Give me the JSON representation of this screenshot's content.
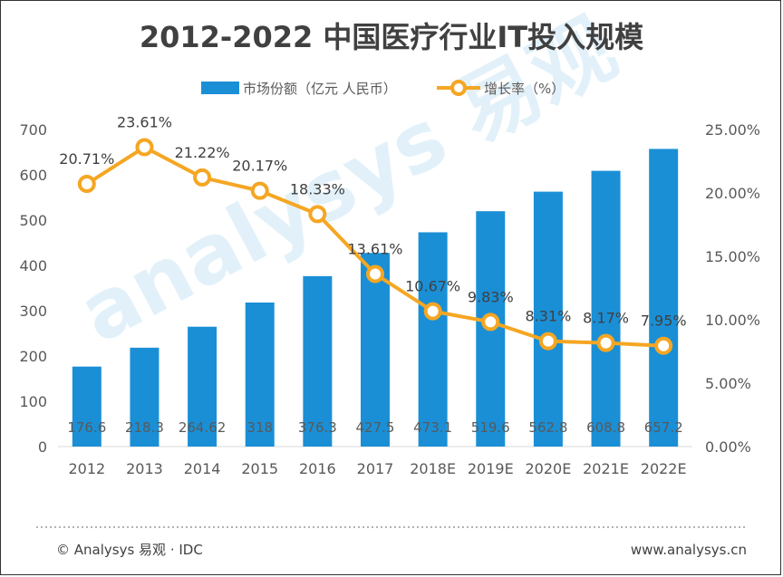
{
  "chart_data": {
    "type": "bar",
    "title": "2012-2022 中国医疗行业IT投入规模",
    "categories": [
      "2012",
      "2013",
      "2014",
      "2015",
      "2016",
      "2017",
      "2018E",
      "2019E",
      "2020E",
      "2021E",
      "2022E"
    ],
    "series": [
      {
        "name": "市场份额（亿元 人民币）",
        "type": "bar",
        "axis": "left",
        "color": "#1a8fd6",
        "values": [
          176.6,
          218.3,
          264.62,
          318,
          376.3,
          427.5,
          473.1,
          519.6,
          562.8,
          608.8,
          657.2
        ],
        "labels": [
          "176.6",
          "218.3",
          "264.62",
          "318",
          "376.3",
          "427.5",
          "473.1",
          "519.6",
          "562.8",
          "608.8",
          "657.2"
        ]
      },
      {
        "name": "增长率（%）",
        "type": "line",
        "axis": "right",
        "color": "#f5a623",
        "values": [
          20.71,
          23.61,
          21.22,
          20.17,
          18.33,
          13.61,
          10.67,
          9.83,
          8.31,
          8.17,
          7.95
        ],
        "labels": [
          "20.71%",
          "23.61%",
          "21.22%",
          "20.17%",
          "18.33%",
          "13.61%",
          "10.67%",
          "9.83%",
          "8.31%",
          "8.17%",
          "7.95%"
        ]
      }
    ],
    "y_left": {
      "min": 0,
      "max": 700,
      "ticks": [
        "0",
        "100",
        "200",
        "300",
        "400",
        "500",
        "600",
        "700"
      ]
    },
    "y_right": {
      "min": 0,
      "max": 25,
      "ticks": [
        "0.00%",
        "5.00%",
        "10.00%",
        "15.00%",
        "20.00%",
        "25.00%"
      ]
    },
    "legend_position": "top-center",
    "grid": false
  },
  "footer": {
    "source": "© Analysys 易观 · IDC",
    "site": "www.analysys.cn"
  },
  "watermark": "Analysys 易观"
}
